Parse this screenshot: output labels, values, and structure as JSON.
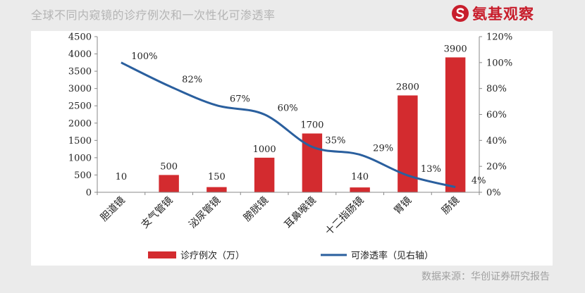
{
  "header": {
    "title": "全球不同内窥镜的诊疗例次和一次性化可渗透率",
    "brand": "氨基观察",
    "brand_color": "#c81e2c",
    "brand_icon": "circle-s-logo-icon"
  },
  "source": "数据来源：华创证券研究报告",
  "chart_data": {
    "type": "bar",
    "categories": [
      "胆道镜",
      "支气管镜",
      "泌尿管镜",
      "膀胱镜",
      "耳鼻喉镜",
      "十二指肠镜",
      "胃镜",
      "肠镜"
    ],
    "series": [
      {
        "name": "诊疗例次（万）",
        "type": "bar",
        "axis": "left",
        "color": "#d32b2f",
        "values": [
          10,
          500,
          150,
          1000,
          1700,
          140,
          2800,
          3900
        ],
        "labels": [
          "10",
          "500",
          "150",
          "1000",
          "1700",
          "140",
          "2800",
          "3900"
        ]
      },
      {
        "name": "可渗透率（见右轴）",
        "type": "line",
        "axis": "right",
        "color": "#2a5f9e",
        "values": [
          100,
          82,
          67,
          60,
          35,
          29,
          13,
          4
        ],
        "labels": [
          "100%",
          "82%",
          "67%",
          "60%",
          "35%",
          "29%",
          "13%",
          "4%"
        ]
      }
    ],
    "ylim_left": [
      0,
      4500
    ],
    "yticks_left": [
      "0",
      "500",
      "1000",
      "1500",
      "2000",
      "2500",
      "3000",
      "3500",
      "4000",
      "4500"
    ],
    "ylim_right": [
      0,
      120
    ],
    "yticks_right": [
      "0%",
      "20%",
      "40%",
      "60%",
      "80%",
      "100%",
      "120%"
    ],
    "grid": false,
    "legend_position": "bottom"
  }
}
